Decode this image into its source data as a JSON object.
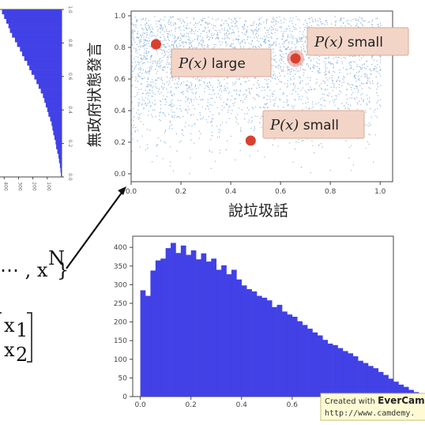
{
  "chart_data": [
    {
      "type": "scatter",
      "title": "",
      "xlabel": "說垃圾話",
      "ylabel": "無政府狀態發言",
      "xlim": [
        0,
        1.05
      ],
      "ylim": [
        -0.05,
        1.03
      ],
      "x_ticks": [
        "0.0",
        "0.2",
        "0.4",
        "0.6",
        "0.8",
        "1.0"
      ],
      "y_ticks": [
        "0.0",
        "0.2",
        "0.4",
        "0.6",
        "0.8",
        "1.0"
      ],
      "point_color": "#3a7bbf",
      "density_description_points": [
        {
          "x": 0.1,
          "y": 0.8
        },
        {
          "x": 0.2,
          "y": 0.85
        },
        {
          "x": 0.35,
          "y": 0.9
        },
        {
          "x": 0.5,
          "y": 0.88
        },
        {
          "x": 0.65,
          "y": 0.92
        },
        {
          "x": 0.8,
          "y": 0.95
        }
      ],
      "highlighted_points": [
        {
          "x": 0.1,
          "y": 0.82,
          "label_prefix": "P(x)",
          "label_suffix": " large"
        },
        {
          "x": 0.66,
          "y": 0.73,
          "label_prefix": "P(x)",
          "label_suffix": " small"
        },
        {
          "x": 0.48,
          "y": 0.21,
          "label_prefix": "P(x)",
          "label_suffix": " small"
        }
      ],
      "highlight_color": "#d9412e",
      "callout_fill": "#f3d5c7"
    },
    {
      "type": "bar",
      "title": "",
      "xlabel": "",
      "ylabel": "",
      "xlim": [
        -0.03,
        1.0
      ],
      "ylim": [
        0,
        430
      ],
      "x_ticks": [
        "0.0",
        "0.2",
        "0.4",
        "0.6"
      ],
      "y_ticks": [
        "0",
        "50",
        "100",
        "150",
        "200",
        "250",
        "300",
        "350",
        "400"
      ],
      "bin_width": 0.02,
      "bin_start": 0.0,
      "values": [
        285,
        270,
        338,
        365,
        370,
        398,
        412,
        385,
        405,
        380,
        392,
        368,
        384,
        362,
        370,
        340,
        352,
        328,
        340,
        314,
        298,
        288,
        282,
        270,
        265,
        258,
        240,
        246,
        228,
        220,
        214,
        202,
        192,
        182,
        172,
        164,
        152,
        142,
        138,
        130,
        122,
        116,
        108,
        96,
        90,
        82,
        76,
        66,
        58,
        48,
        40,
        32,
        26,
        18,
        12,
        8
      ],
      "bar_color": "#4141e6"
    },
    {
      "type": "bar",
      "orientation": "horizontal",
      "title": "",
      "xlabel": "",
      "ylabel": "",
      "ylim": [
        0.0,
        1.0
      ],
      "y_ticks": [
        "0.0",
        "0.2",
        "0.4",
        "0.6",
        "0.8",
        "1.0"
      ],
      "x_ticks": [
        "100",
        "200",
        "300",
        "400"
      ],
      "values_note": "",
      "values": [
        5,
        8,
        12,
        18,
        22,
        30,
        38,
        42,
        50,
        58,
        64,
        70,
        80,
        92,
        100,
        110,
        120,
        130,
        145,
        160,
        175,
        190,
        210,
        225,
        240,
        260,
        275,
        290,
        310,
        325,
        345,
        360,
        370,
        385,
        400,
        415
      ],
      "bar_color": "#4141e6"
    }
  ],
  "math": {
    "set_tail": "⋯ , x",
    "set_sup": "N",
    "set_close": "}",
    "vec1_base": "x",
    "vec1_sub": "1",
    "vec2_base": "x",
    "vec2_sub": "2"
  },
  "watermark": {
    "line1_prefix": "Created with ",
    "line1_brand": "EverCam",
    "line2": "http://www.camdemy."
  }
}
